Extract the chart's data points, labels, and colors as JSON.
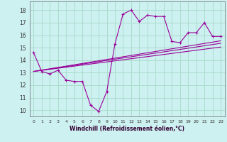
{
  "xlabel": "Windchill (Refroidissement éolien,°C)",
  "background_color": "#cdf0f0",
  "grid_color": "#aaddcc",
  "line_color": "#990099",
  "xlim": [
    -0.5,
    23.5
  ],
  "ylim": [
    9.5,
    18.7
  ],
  "yticks": [
    10,
    11,
    12,
    13,
    14,
    15,
    16,
    17,
    18
  ],
  "xticks": [
    0,
    1,
    2,
    3,
    4,
    5,
    6,
    7,
    8,
    9,
    10,
    11,
    12,
    13,
    14,
    15,
    16,
    17,
    18,
    19,
    20,
    21,
    22,
    23
  ],
  "main_x": [
    0,
    1,
    2,
    3,
    4,
    5,
    6,
    7,
    8,
    9,
    10,
    11,
    12,
    13,
    14,
    15,
    16,
    17,
    18,
    19,
    20,
    21,
    22,
    23
  ],
  "main_y": [
    14.6,
    13.1,
    12.9,
    13.2,
    12.4,
    12.3,
    12.3,
    10.4,
    9.9,
    11.5,
    15.3,
    17.7,
    18.0,
    17.1,
    17.6,
    17.5,
    17.5,
    15.5,
    15.4,
    16.2,
    16.2,
    17.0,
    15.9,
    15.9
  ],
  "line1_x": [
    0,
    23
  ],
  "line1_y": [
    13.1,
    15.35
  ],
  "line2_x": [
    0,
    23
  ],
  "line2_y": [
    13.1,
    15.55
  ],
  "line3_x": [
    0,
    23
  ],
  "line3_y": [
    13.1,
    15.05
  ]
}
